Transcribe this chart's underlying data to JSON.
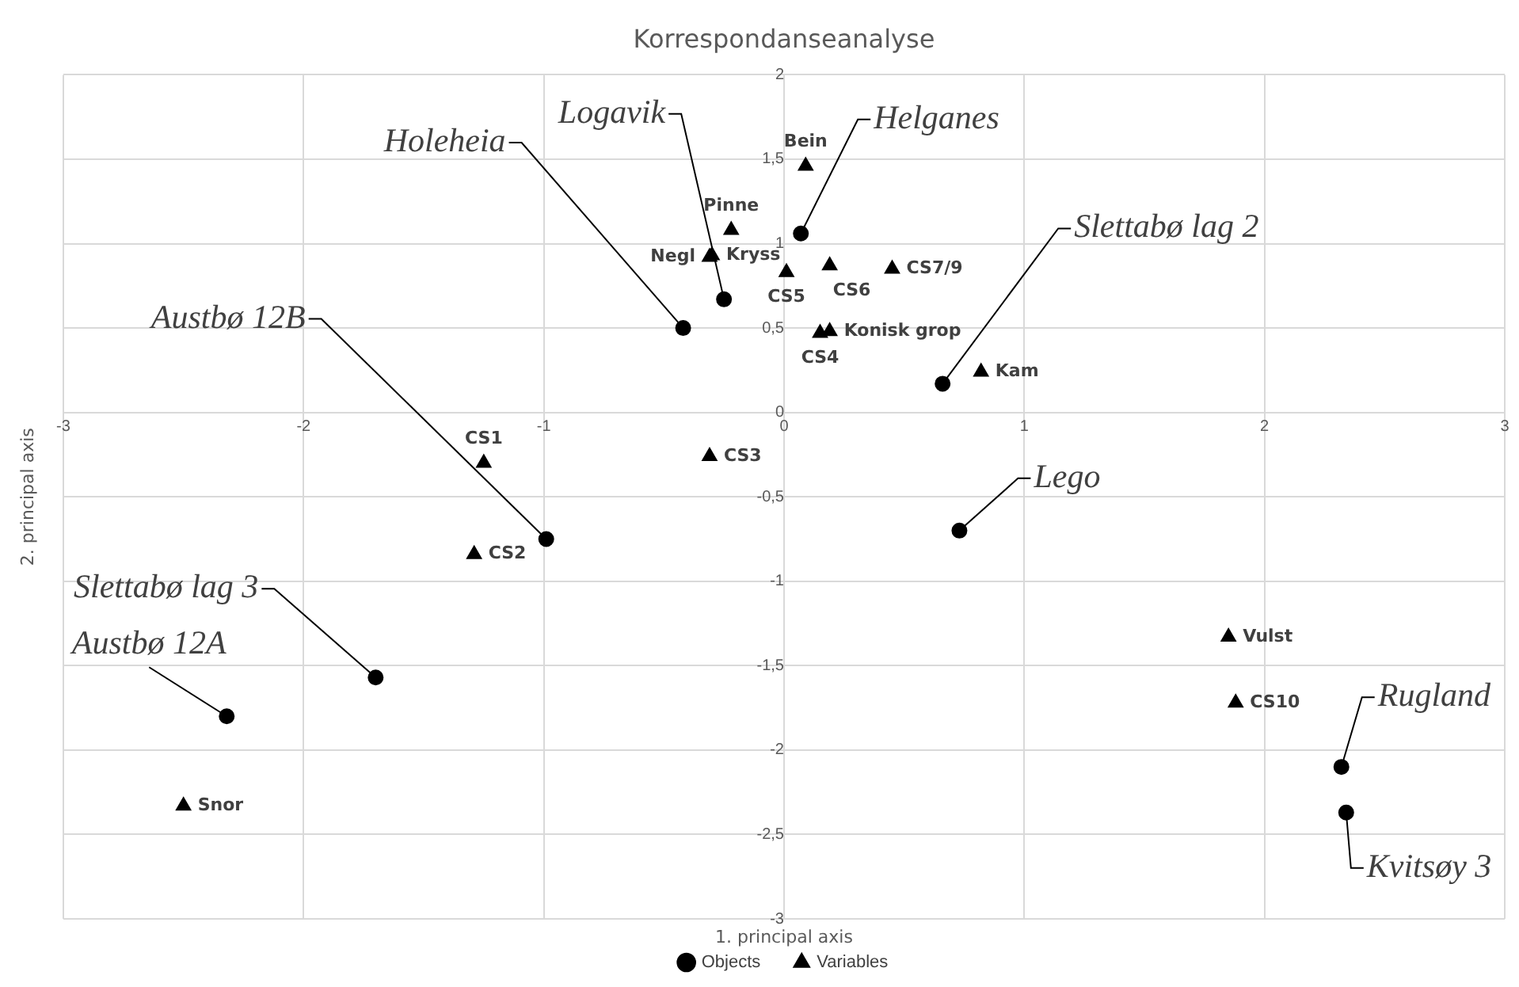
{
  "chart_data": {
    "type": "scatter",
    "title": "Korrespondanseanalyse",
    "xlabel": "1. principal axis",
    "ylabel": "2. principal axis",
    "xlim": [
      -3,
      3
    ],
    "xticks": [
      -3,
      -2,
      -1,
      0,
      1,
      2,
      3
    ],
    "ylim": [
      -3,
      2
    ],
    "yticks": [
      -3,
      {
        "value": -2.5,
        "label": "-2,5"
      },
      -2,
      {
        "value": -1.5,
        "label": "-1,5"
      },
      -1,
      {
        "value": -0.5,
        "label": "-0,5"
      },
      0,
      {
        "value": 0.5,
        "label": "0,5"
      },
      1,
      {
        "value": 1.5,
        "label": "1,5"
      },
      2
    ],
    "grid": true,
    "legend": "bottom",
    "series": [
      {
        "name": "Objects",
        "color": "#000000",
        "marker": "circle",
        "x": [
          -0.99,
          -0.42,
          -0.25,
          0.07,
          0.66,
          0.73,
          -1.7,
          -2.32,
          2.32,
          2.34
        ],
        "values": [
          -0.75,
          0.5,
          0.67,
          1.06,
          0.17,
          -0.7,
          -1.57,
          -1.8,
          -2.1,
          -2.37
        ],
        "value_labels": [
          "Austbø 12B",
          "Holeheia",
          "Logavik",
          "Helganes",
          "Slettabø lag 2",
          "Lego",
          "Slettabø lag 3",
          "Austbø 12A",
          "Rugland",
          "Kvitsøy 3"
        ]
      },
      {
        "name": "Variables",
        "color": "#000000",
        "marker": "triangle",
        "x": [
          0.09,
          -0.22,
          -0.31,
          -0.3,
          0.01,
          0.19,
          0.45,
          0.15,
          0.19,
          0.82,
          -1.25,
          -0.31,
          -1.29,
          1.85,
          1.88,
          -2.5
        ],
        "values": [
          1.46,
          1.08,
          0.92,
          0.93,
          0.83,
          0.87,
          0.85,
          0.47,
          0.48,
          0.24,
          -0.3,
          -0.26,
          -0.84,
          -1.33,
          -1.72,
          -2.33
        ],
        "value_labels": [
          "Bein",
          "Pinne",
          "Negl",
          "Kryss",
          "CS5",
          "CS6",
          "CS7/9",
          "CS4",
          "Konisk grop",
          "Kam",
          "CS1",
          "CS3",
          "CS2",
          "Vulst",
          "CS10",
          "Snor"
        ]
      }
    ]
  }
}
